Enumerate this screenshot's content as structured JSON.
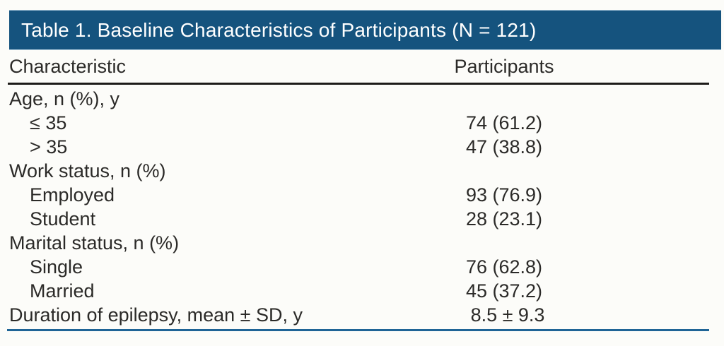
{
  "title": "Table 1. Baseline Characteristics of Participants (N = 121)",
  "columns": {
    "characteristic": "Characteristic",
    "participants": "Participants"
  },
  "rows": [
    {
      "label": "Age, n (%), y",
      "value": "",
      "indent": false
    },
    {
      "label": "≤ 35",
      "value": "74 (61.2)",
      "indent": true
    },
    {
      "label": "> 35",
      "value": "47 (38.8)",
      "indent": true
    },
    {
      "label": "Work status, n (%)",
      "value": "",
      "indent": false
    },
    {
      "label": "Employed",
      "value": "93 (76.9)",
      "indent": true
    },
    {
      "label": "Student",
      "value": "28 (23.1)",
      "indent": true
    },
    {
      "label": "Marital status, n (%)",
      "value": "",
      "indent": false
    },
    {
      "label": "Single",
      "value": "76 (62.8)",
      "indent": true
    },
    {
      "label": "Married",
      "value": "45 (37.2)",
      "indent": true
    },
    {
      "label": "Duration of epilepsy, mean ± SD, y",
      "value": "8.5 ± 9.3",
      "indent": false
    }
  ],
  "colors": {
    "header_bg": "#15537e",
    "header_text": "#ffffff",
    "body_text": "#2b2a28",
    "top_rule": "#1d1b19",
    "bottom_rule": "#1f6496",
    "page_bg": "#fcfcf9"
  },
  "chart_data": {
    "type": "table",
    "title": "Table 1. Baseline Characteristics of Participants (N = 121)",
    "columns": [
      "Characteristic",
      "Participants"
    ],
    "rows": [
      [
        "Age, n (%), y",
        ""
      ],
      [
        "≤ 35",
        "74 (61.2)"
      ],
      [
        "> 35",
        "47 (38.8)"
      ],
      [
        "Work status, n (%)",
        ""
      ],
      [
        "Employed",
        "93 (76.9)"
      ],
      [
        "Student",
        "28 (23.1)"
      ],
      [
        "Marital status, n (%)",
        ""
      ],
      [
        "Single",
        "76 (62.8)"
      ],
      [
        "Married",
        "45 (37.2)"
      ],
      [
        "Duration of epilepsy, mean ± SD, y",
        "8.5 ± 9.3"
      ]
    ]
  }
}
